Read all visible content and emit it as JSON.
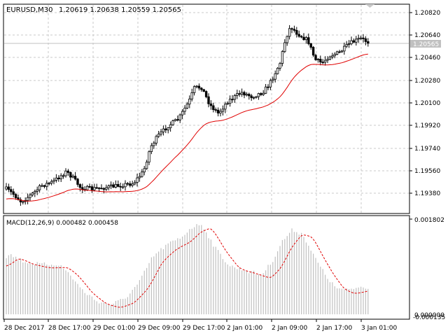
{
  "main_chart": {
    "symbol_info": "EURUSD,M30",
    "ohlc_info": "1.20619 1.20638 1.20559 1.20565",
    "current_price": "1.20565",
    "price_ticks": [
      "1.20820",
      "1.20640",
      "1.20460",
      "1.20280",
      "1.20100",
      "1.19920",
      "1.19740",
      "1.19560",
      "1.19380"
    ],
    "colors": {
      "background": "#ffffff",
      "grid": "#c8c8c8",
      "candle": "#000000",
      "moving_average": "#e00000",
      "current_price_line": "#c0c0c0",
      "current_price_label_bg": "#c0c0c0"
    }
  },
  "macd_panel": {
    "label": "MACD(12,26,9) 0.000482 0.000458",
    "top_value": "0.001802",
    "bottom_value": "0.000000",
    "bottom_value_shadow": "-0.000135",
    "colors": {
      "histogram": "#c0c0c0",
      "signal": "#e00000"
    }
  },
  "time_axis": {
    "labels": [
      "28 Dec 2017",
      "28 Dec 17:00",
      "29 Dec 01:00",
      "29 Dec 09:00",
      "29 Dec 17:00",
      "2 Jan 01:00",
      "2 Jan 09:00",
      "2 Jan 17:00",
      "3 Jan 01:00"
    ]
  }
}
